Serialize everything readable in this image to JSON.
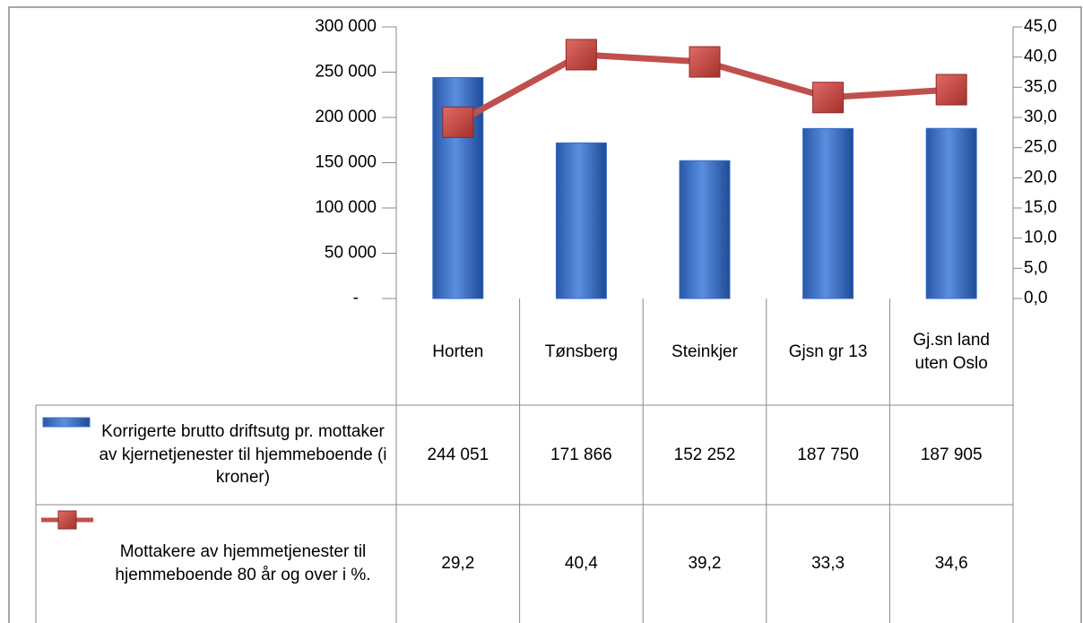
{
  "chart_data": {
    "type": "bar",
    "categories": [
      "Horten",
      "Tønsberg",
      "Steinkjer",
      "Gjsn gr 13",
      "Gj.sn land uten Oslo"
    ],
    "series": [
      {
        "name": "Korrigerte brutto driftsutg pr. mottaker av kjernetjenester til hjemmeboende (i kroner)",
        "type": "bar",
        "color": "#3a6fc4",
        "values": [
          244051,
          171866,
          152252,
          187750,
          187905
        ],
        "value_labels": [
          "244 051",
          "171 866",
          "152 252",
          "187 750",
          "187 905"
        ]
      },
      {
        "name": "Mottakere av hjemmetjenester til hjemmeboende 80 år og over i %.",
        "type": "line",
        "axis": "y2",
        "color": "#c0504d",
        "values": [
          29.2,
          40.4,
          39.2,
          33.3,
          34.6
        ],
        "value_labels": [
          "29,2",
          "40,4",
          "39,2",
          "33,3",
          "34,6"
        ]
      }
    ],
    "ylim": [
      0,
      300000
    ],
    "yticks": [
      {
        "value": 0,
        "label": "-"
      },
      {
        "value": 50000,
        "label": "50 000"
      },
      {
        "value": 100000,
        "label": "100 000"
      },
      {
        "value": 150000,
        "label": "150 000"
      },
      {
        "value": 200000,
        "label": "200 000"
      },
      {
        "value": 250000,
        "label": "250 000"
      },
      {
        "value": 300000,
        "label": "300 000"
      }
    ],
    "y2lim": [
      0,
      45
    ],
    "y2ticks": [
      {
        "value": 0,
        "label": "0,0"
      },
      {
        "value": 5,
        "label": "5,0"
      },
      {
        "value": 10,
        "label": "10,0"
      },
      {
        "value": 15,
        "label": "15,0"
      },
      {
        "value": 20,
        "label": "20,0"
      },
      {
        "value": 25,
        "label": "25,0"
      },
      {
        "value": 30,
        "label": "30,0"
      },
      {
        "value": 35,
        "label": "35,0"
      },
      {
        "value": 40,
        "label": "40,0"
      },
      {
        "value": 45,
        "label": "45,0"
      }
    ],
    "data_table": true
  }
}
